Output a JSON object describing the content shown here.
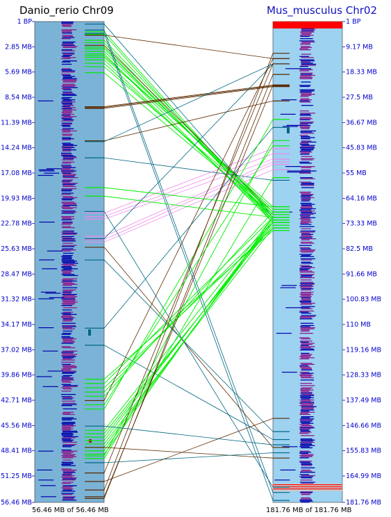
{
  "left_chrom": {
    "title": "Danio_rerio Chr09",
    "footer": "56.46 MB of 56.46 MB",
    "ticks": [
      "1 BP",
      "2.85 MB",
      "5.69 MB",
      "8.54 MB",
      "11.39 MB",
      "14.24 MB",
      "17.08 MB",
      "19.93 MB",
      "22.78 MB",
      "25.63 MB",
      "28.47 MB",
      "31.32 MB",
      "34.17 MB",
      "37.02 MB",
      "39.86 MB",
      "42.71 MB",
      "45.56 MB",
      "48.41 MB",
      "51.25 MB",
      "56.46 MB"
    ],
    "colors": {
      "background": "#7bb3d6",
      "feature_dark": "#0000aa",
      "feature_purple": "#8b1a8b",
      "tick_text": "#0000cc"
    },
    "length_mb": 56.46
  },
  "right_chrom": {
    "title": "Mus_musculus Chr02",
    "footer": "181.76 MB of 181.76 MB",
    "ticks": [
      "1 BP",
      "9.17 MB",
      "18.33 MB",
      "27.5 MB",
      "36.67 MB",
      "45.83 MB",
      "55 MB",
      "64.16 MB",
      "73.33 MB",
      "82.5 MB",
      "91.66 MB",
      "100.83 MB",
      "110 MB",
      "119.16 MB",
      "128.33 MB",
      "137.49 MB",
      "146.66 MB",
      "155.83 MB",
      "164.99 MB",
      "181.76 MB"
    ],
    "colors": {
      "background": "#9dd2f0",
      "feature_dark": "#0000aa",
      "feature_purple": "#8b1a8b",
      "highlight": "#ff0000",
      "tick_text": "#0000cc"
    },
    "length_mb": 181.76
  },
  "link_colors": {
    "bright": "#00ee00",
    "pink": "#ee88ee",
    "brown": "#5a2a00",
    "teal": "#006680"
  },
  "links": [
    {
      "l": 0.3,
      "r": 74,
      "c": "teal"
    },
    {
      "l": 1.2,
      "r": 75,
      "c": "bright"
    },
    {
      "l": 1.5,
      "r": 76,
      "c": "bright"
    },
    {
      "l": 2.2,
      "r": 73,
      "c": "bright"
    },
    {
      "l": 2.5,
      "r": 75,
      "c": "bright"
    },
    {
      "l": 2.8,
      "r": 72,
      "c": "brown"
    },
    {
      "l": 3.0,
      "r": 74,
      "c": "bright"
    },
    {
      "l": 3.2,
      "r": 73,
      "c": "bright"
    },
    {
      "l": 3.5,
      "r": 72,
      "c": "bright"
    },
    {
      "l": 3.8,
      "r": 76,
      "c": "bright"
    },
    {
      "l": 4.0,
      "r": 71,
      "c": "bright"
    },
    {
      "l": 4.2,
      "r": 70,
      "c": "bright"
    },
    {
      "l": 4.5,
      "r": 75,
      "c": "bright"
    },
    {
      "l": 4.9,
      "r": 74,
      "c": "bright"
    },
    {
      "l": 5.3,
      "r": 72,
      "c": "bright"
    },
    {
      "l": 6.0,
      "r": 73,
      "c": "bright"
    },
    {
      "l": 1.6,
      "r": 14,
      "c": "brown"
    },
    {
      "l": 1.4,
      "r": 181,
      "c": "teal"
    },
    {
      "l": 1.0,
      "r": 178,
      "c": "teal"
    },
    {
      "l": 10.0,
      "r": 24,
      "c": "brown"
    },
    {
      "l": 10.1,
      "r": 24.3,
      "c": "brown"
    },
    {
      "l": 10.2,
      "r": 24.6,
      "c": "brown"
    },
    {
      "l": 14.0,
      "r": 30,
      "c": "brown"
    },
    {
      "l": 14.1,
      "r": 16,
      "c": "teal"
    },
    {
      "l": 16.0,
      "r": 60,
      "c": "teal"
    },
    {
      "l": 22.5,
      "r": 48,
      "c": "pink"
    },
    {
      "l": 22.9,
      "r": 50,
      "c": "pink"
    },
    {
      "l": 23.2,
      "r": 52,
      "c": "pink"
    },
    {
      "l": 25.2,
      "r": 53,
      "c": "pink"
    },
    {
      "l": 25.6,
      "r": 54,
      "c": "pink"
    },
    {
      "l": 25.9,
      "r": 56,
      "c": "pink"
    },
    {
      "l": 22.3,
      "r": 176,
      "c": "teal"
    },
    {
      "l": 25.5,
      "r": 16,
      "c": "teal"
    },
    {
      "l": 26.5,
      "r": 161,
      "c": "brown"
    },
    {
      "l": 28.0,
      "r": 155,
      "c": "teal"
    },
    {
      "l": 36.0,
      "r": 40,
      "c": "teal"
    },
    {
      "l": 38.0,
      "r": 158,
      "c": "teal"
    },
    {
      "l": 42.0,
      "r": 79,
      "c": "bright"
    },
    {
      "l": 42.5,
      "r": 74,
      "c": "bright"
    },
    {
      "l": 43.0,
      "r": 78,
      "c": "bright"
    },
    {
      "l": 43.5,
      "r": 76,
      "c": "bright"
    },
    {
      "l": 44.5,
      "r": 14,
      "c": "brown"
    },
    {
      "l": 45.5,
      "r": 37,
      "c": "bright"
    },
    {
      "l": 48.0,
      "r": 74,
      "c": "bright"
    },
    {
      "l": 48.4,
      "r": 77,
      "c": "bright"
    },
    {
      "l": 48.8,
      "r": 76,
      "c": "bright"
    },
    {
      "l": 49.2,
      "r": 75,
      "c": "bright"
    },
    {
      "l": 49.6,
      "r": 78,
      "c": "bright"
    },
    {
      "l": 50.0,
      "r": 76,
      "c": "bright"
    },
    {
      "l": 50.4,
      "r": 75,
      "c": "bright"
    },
    {
      "l": 50.8,
      "r": 74,
      "c": "bright"
    },
    {
      "l": 51.0,
      "r": 45,
      "c": "bright"
    },
    {
      "l": 51.3,
      "r": 59,
      "c": "bright"
    },
    {
      "l": 50.0,
      "r": 165,
      "c": "brown"
    },
    {
      "l": 51.8,
      "r": 163,
      "c": "teal"
    },
    {
      "l": 53.0,
      "r": 16,
      "c": "brown"
    },
    {
      "l": 54.0,
      "r": 150,
      "c": "brown"
    },
    {
      "l": 55.0,
      "r": 12,
      "c": "brown"
    },
    {
      "l": 55.8,
      "r": 24,
      "c": "brown"
    },
    {
      "l": 56.0,
      "r": 20,
      "c": "brown"
    },
    {
      "l": 47.5,
      "r": 160,
      "c": "teal"
    },
    {
      "l": 45.0,
      "r": 47,
      "c": "bright"
    },
    {
      "l": 44.0,
      "r": 72,
      "c": "bright"
    },
    {
      "l": 19.5,
      "r": 70,
      "c": "bright"
    },
    {
      "l": 20.5,
      "r": 74,
      "c": "bright"
    }
  ]
}
